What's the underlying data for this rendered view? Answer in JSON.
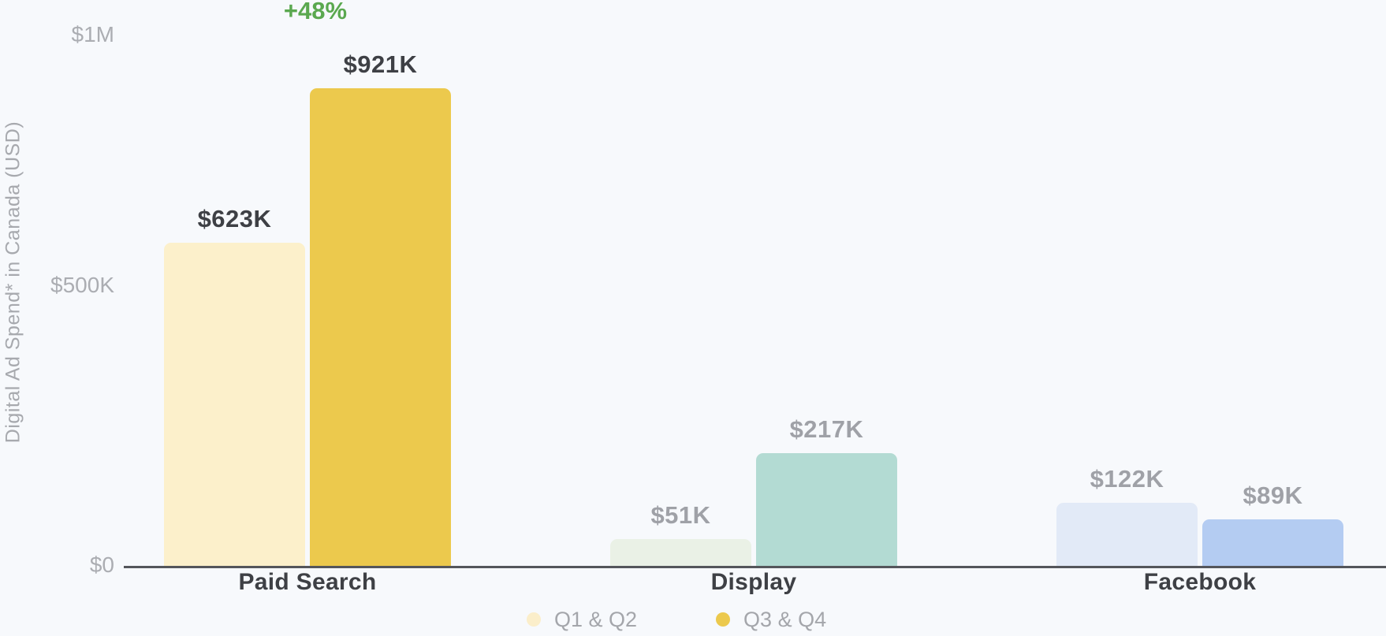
{
  "background_color": "#F7F9FC",
  "text_colors": {
    "emphasis": "#3E4045",
    "muted_value": "#9FA1A7",
    "tick_gray": "#ABADB2",
    "annotation_green": "#5AA84F",
    "axis_line": "#54565B"
  },
  "chart_data": {
    "type": "bar",
    "title": "",
    "xlabel": "",
    "ylabel": "Digital Ad Spend* in Canada (USD)",
    "ylim": [
      0,
      1000000
    ],
    "grid": false,
    "legend_position": "bottom",
    "yticks": [
      {
        "label": "$1M",
        "value": 1000000
      },
      {
        "label": "$500K",
        "value": 500000
      },
      {
        "label": "$0",
        "value": 0
      }
    ],
    "categories": [
      "Paid Search",
      "Display",
      "Facebook"
    ],
    "series": [
      {
        "name": "Q1 & Q2",
        "legend_color": "#FBEECA",
        "values": [
          623000,
          51000,
          122000
        ],
        "labels": [
          "$623K",
          "$51K",
          "$122K"
        ],
        "colors": [
          "#FCF0CB",
          "#EAF1E6",
          "#E2EAF7"
        ]
      },
      {
        "name": "Q3 & Q4",
        "legend_color": "#ECC94D",
        "values": [
          921000,
          217000,
          89000
        ],
        "labels": [
          "$921K",
          "$217K",
          "$89K"
        ],
        "colors": [
          "#ECC94D",
          "#B3DBD3",
          "#B4CCF2"
        ]
      }
    ],
    "emphasized_category": "Paid Search",
    "annotation": {
      "text": "+48%",
      "color": "#5AA84F",
      "target_category": "Paid Search"
    }
  }
}
